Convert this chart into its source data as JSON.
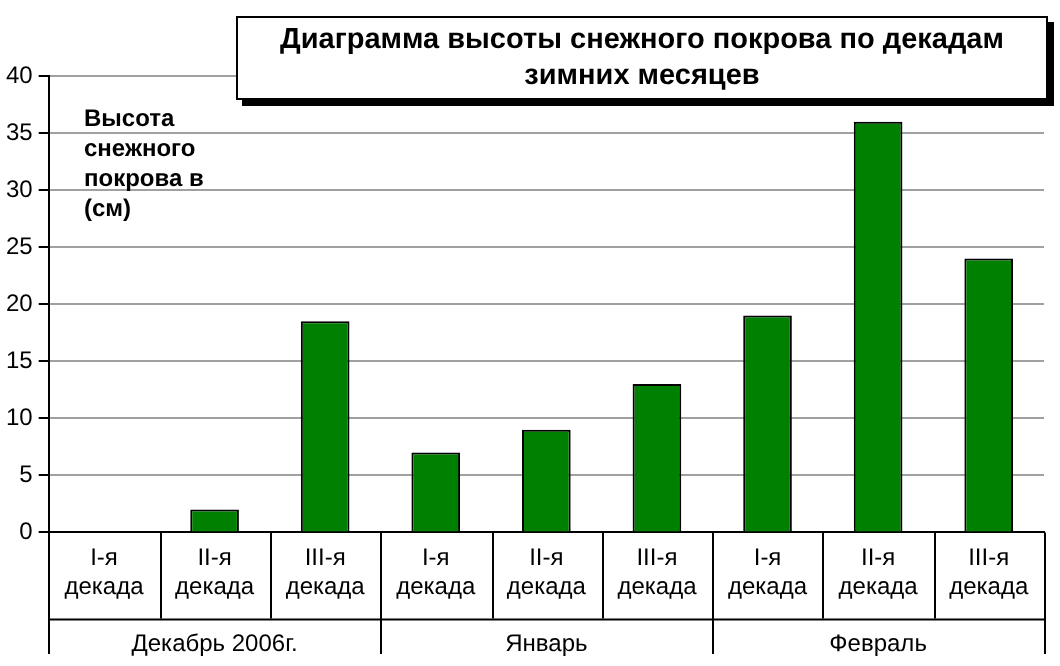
{
  "chart_data": {
    "type": "bar",
    "title": "Диаграмма высоты снежного покрова по декадам зимних месяцев",
    "ylabel": "Высота снежного покрова в (см)",
    "categories": [
      "I-я декада",
      "II-я декада",
      "III-я декада",
      "I-я декада",
      "II-я декада",
      "III-я декада",
      "I-я декада",
      "II-я декада",
      "III-я декада"
    ],
    "values": [
      0,
      2,
      18.5,
      7,
      9,
      13,
      19,
      36,
      24
    ],
    "color": "#008000",
    "ylim": [
      0,
      40
    ],
    "yticks": [
      0,
      5,
      10,
      15,
      20,
      25,
      30,
      35,
      40
    ],
    "grid": "y",
    "annotations": [
      "Декабрь 2006г.",
      "Январь",
      "Февраль"
    ]
  }
}
